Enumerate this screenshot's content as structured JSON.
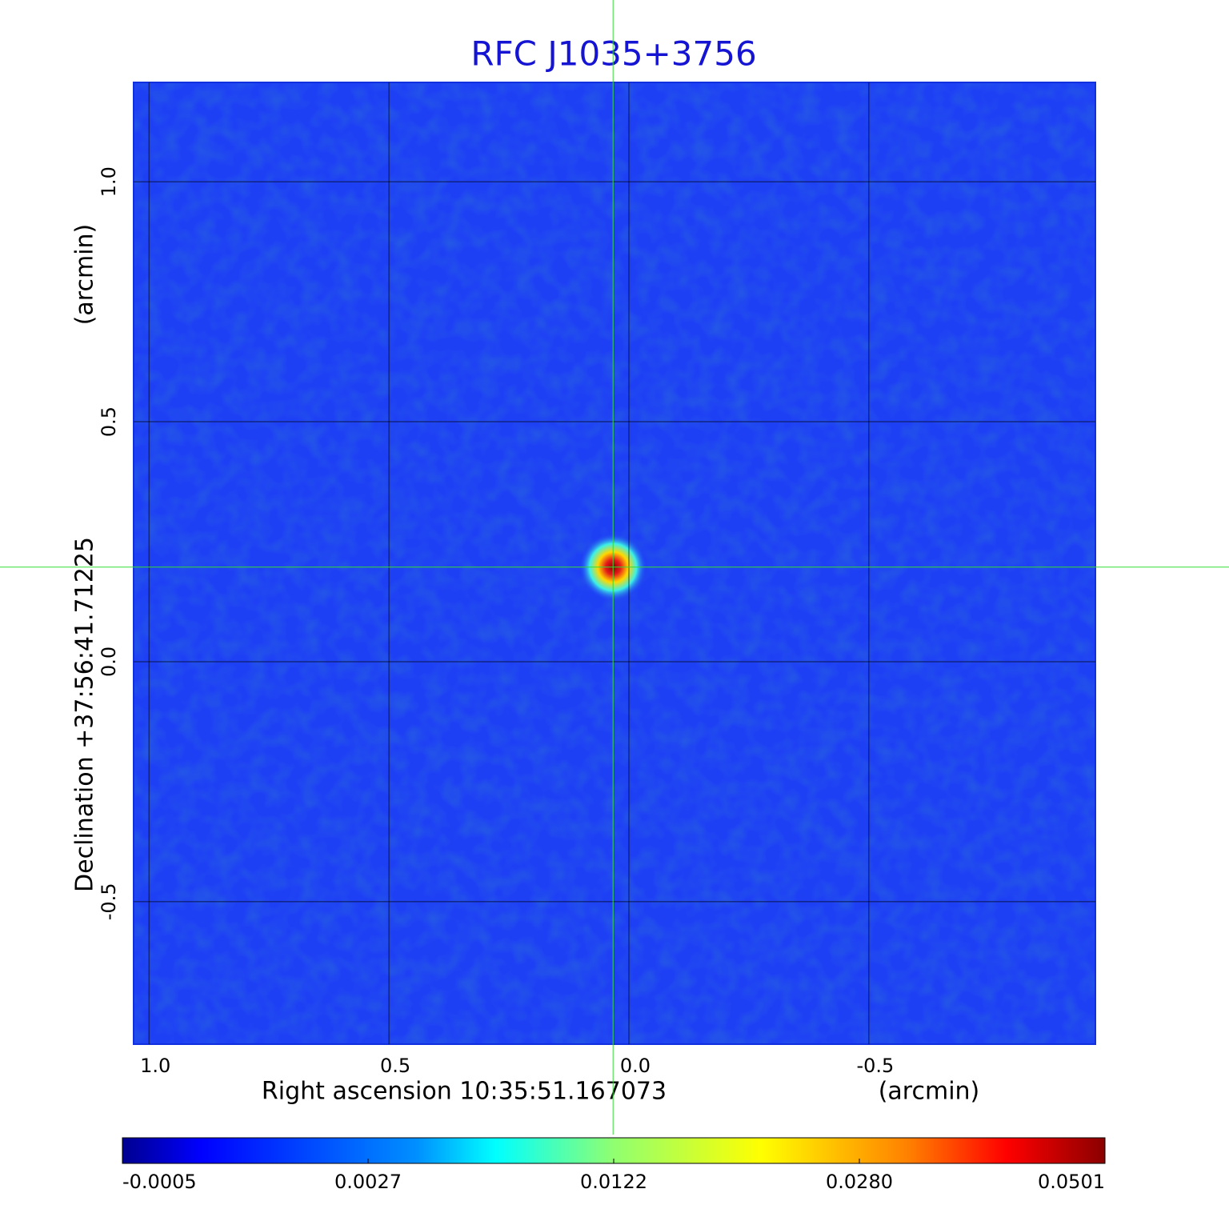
{
  "chart_data": {
    "type": "image",
    "title": "RFC J1035+3756",
    "x_label": "Right ascension  10:35:51.167073",
    "x_unit_label": "(arcmin)",
    "y_label": "Declination  +37:56:41.71225",
    "y_unit_label": "(arcmin)",
    "xlim": [
      1.032,
      -0.972
    ],
    "ylim": [
      -0.797,
      1.207
    ],
    "xticks": [
      {
        "value": 1,
        "label": "1.0"
      },
      0.5,
      {
        "value": 0,
        "label": "0.0"
      },
      -0.5
    ],
    "yticks": [
      -0.5,
      {
        "value": 0,
        "label": "0.0"
      },
      0.5,
      {
        "value": 1,
        "label": "1.0"
      }
    ],
    "grid": true,
    "source": {
      "x": 0.033,
      "y": 0.197
    },
    "colorbar": {
      "colormap": "jet",
      "ticks": [
        -0.0005,
        0.0027,
        0.0122,
        {
          "value": 0.028,
          "label": "0.0280"
        },
        0.0501
      ]
    }
  }
}
